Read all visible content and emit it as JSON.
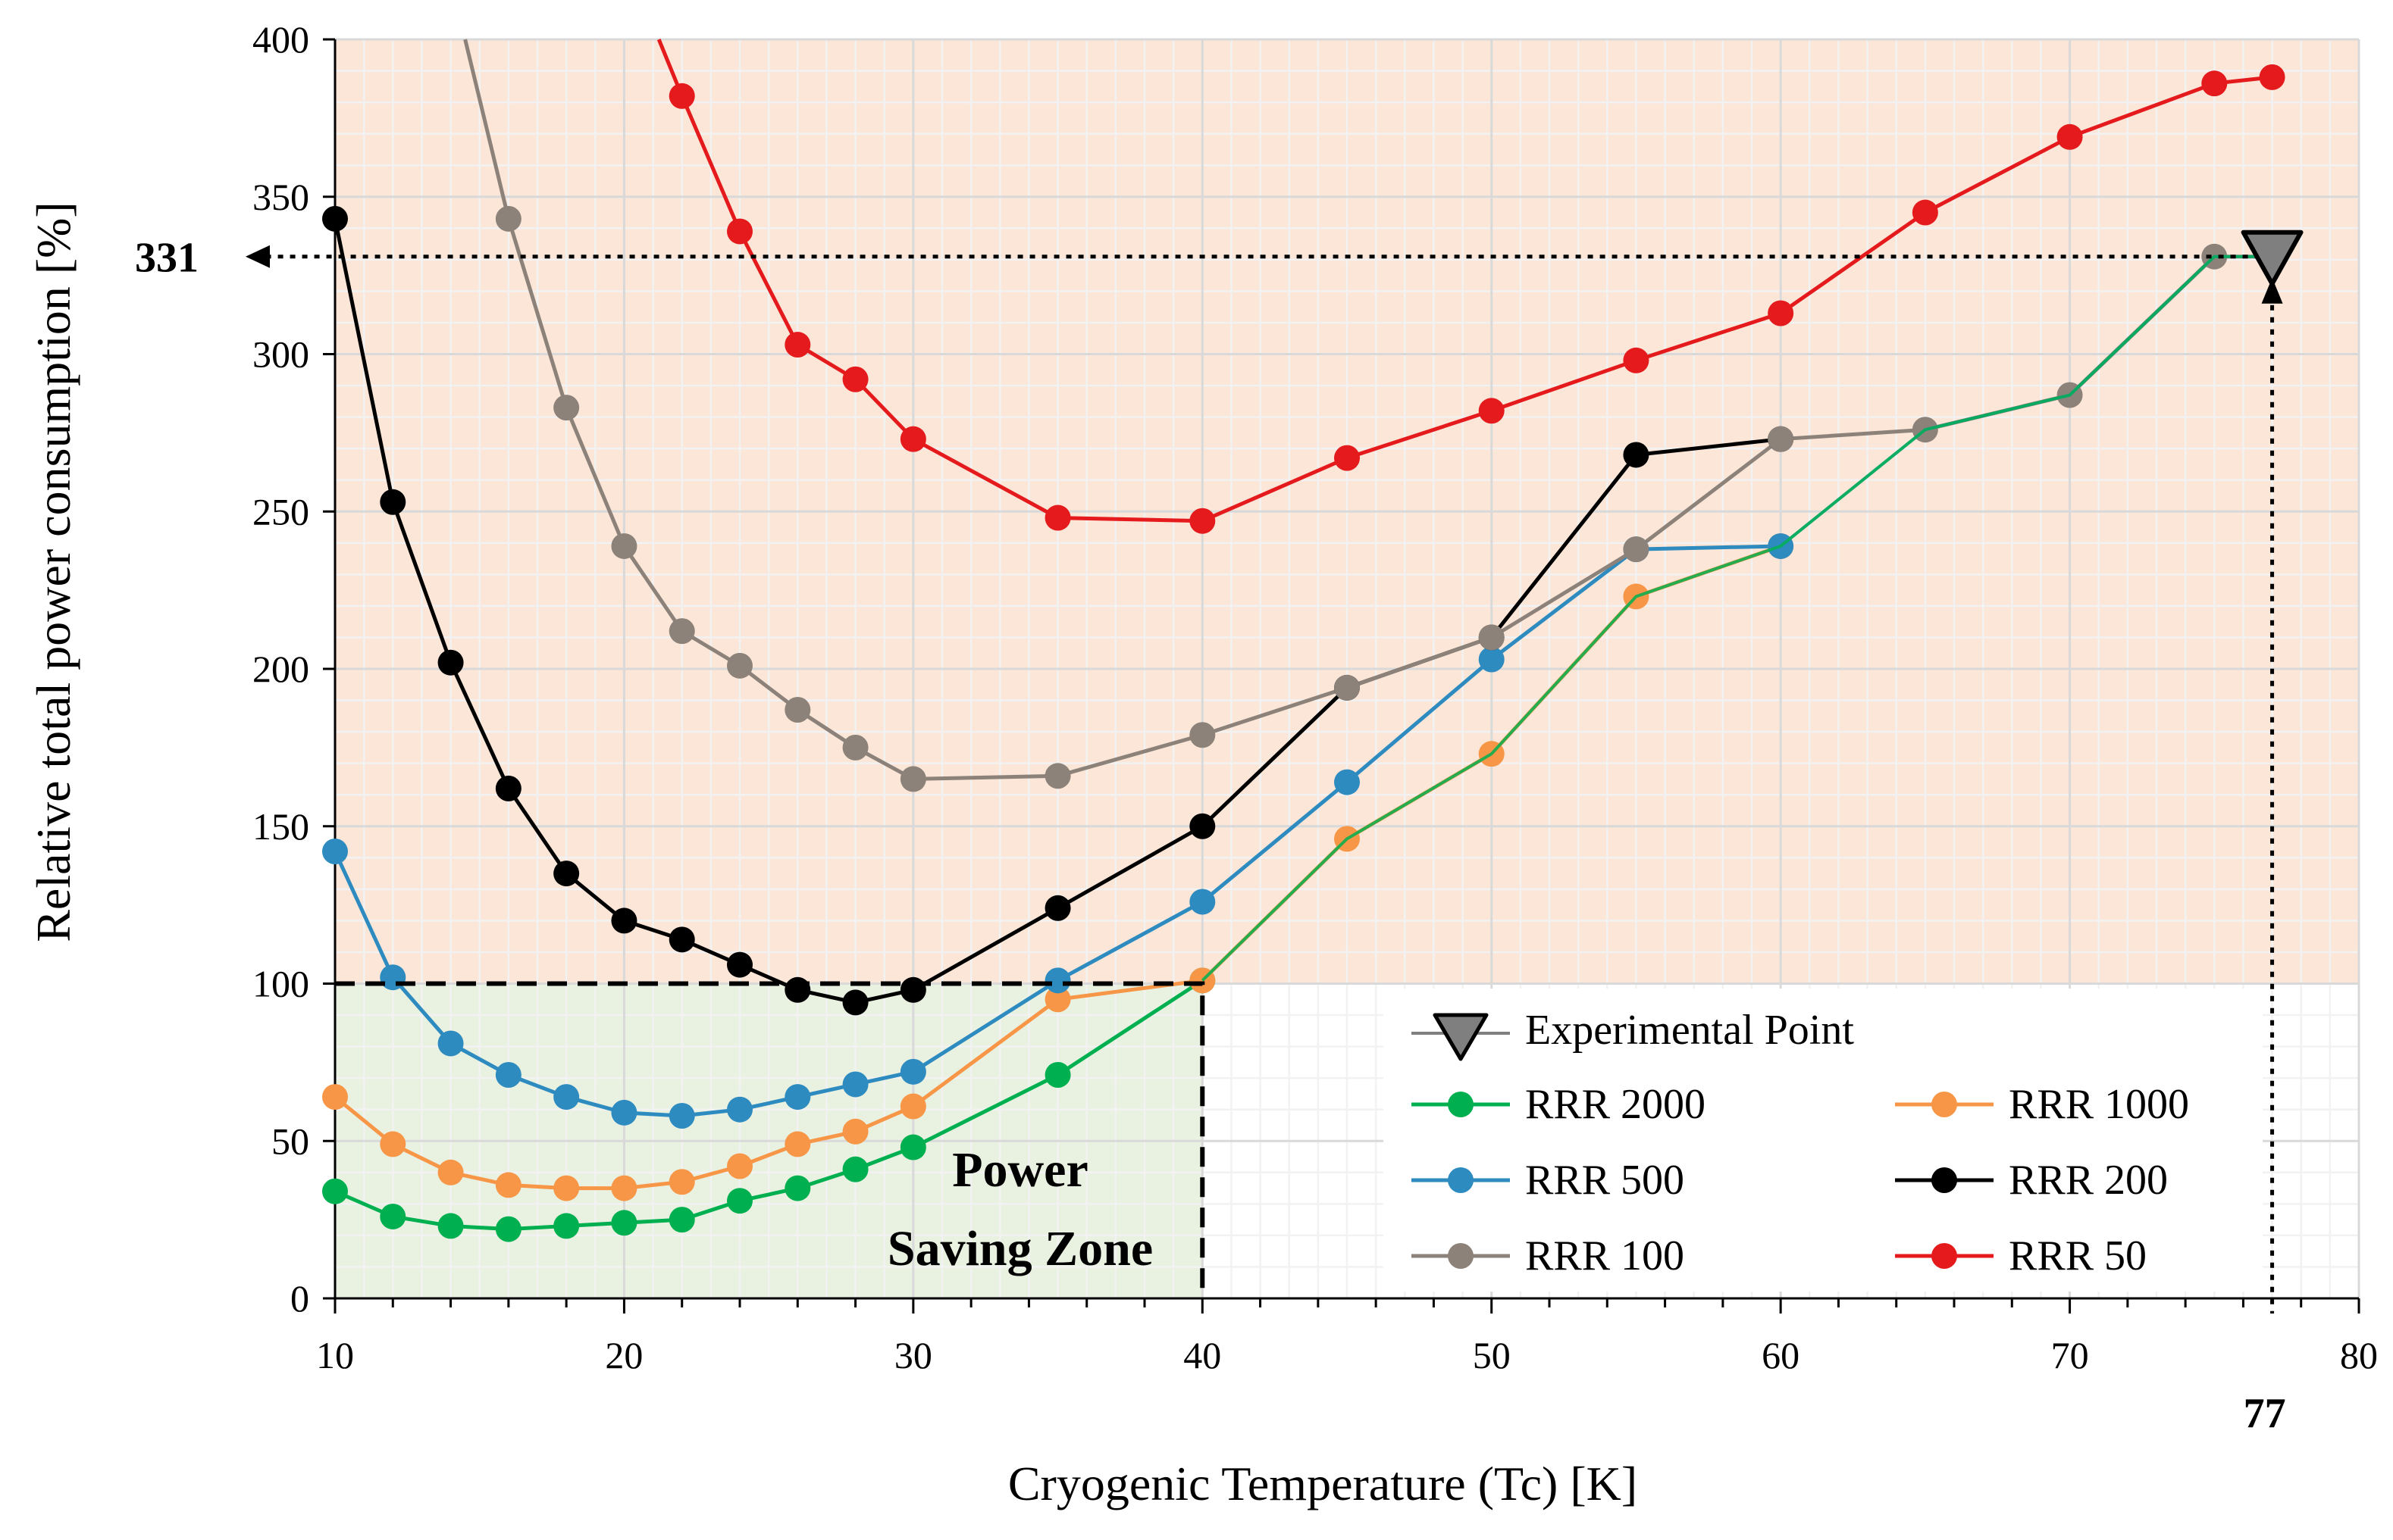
{
  "chart_data": {
    "type": "line",
    "title": "",
    "xlabel": "Cryogenic Temperature (Tc) [K]",
    "ylabel": "Relative total power consumption [%]",
    "xlim": [
      10,
      80
    ],
    "ylim": [
      0,
      400
    ],
    "xticks": [
      10,
      20,
      30,
      40,
      50,
      60,
      70,
      80
    ],
    "yticks": [
      0,
      50,
      100,
      150,
      200,
      250,
      300,
      350,
      400
    ],
    "grid": true,
    "colors": {
      "power_zone_bg": "#e9f1e1",
      "high_zone_bg": "#fbe6d8",
      "grid_major": "#d9d9d9",
      "grid_minor": "#f2f2f2",
      "experimental": "#7f7f7f"
    },
    "series": [
      {
        "name": "RRR 2000",
        "color": "#00b050",
        "x": [
          10,
          12,
          14,
          16,
          18,
          20,
          22,
          24,
          26,
          28,
          30,
          35,
          40
        ],
        "y": [
          34,
          26,
          23,
          22,
          23,
          24,
          25,
          31,
          35,
          41,
          48,
          71,
          101
        ]
      },
      {
        "name": "RRR 1000",
        "color": "#f79646",
        "x": [
          10,
          12,
          14,
          16,
          18,
          20,
          22,
          24,
          26,
          28,
          30,
          35,
          40,
          45,
          50,
          55,
          60
        ],
        "y": [
          64,
          49,
          40,
          36,
          35,
          35,
          37,
          42,
          49,
          53,
          61,
          95,
          101,
          146,
          173,
          223,
          239
        ]
      },
      {
        "name": "RRR 500",
        "color": "#2e8bc0",
        "x": [
          10,
          12,
          14,
          16,
          18,
          20,
          22,
          24,
          26,
          28,
          30,
          35,
          40,
          45,
          50,
          55,
          60
        ],
        "y": [
          142,
          102,
          81,
          71,
          64,
          59,
          58,
          60,
          64,
          68,
          72,
          101,
          126,
          164,
          203,
          238,
          239
        ]
      },
      {
        "name": "RRR 200",
        "color": "#000000",
        "x": [
          10,
          12,
          14,
          16,
          18,
          20,
          22,
          24,
          26,
          28,
          30,
          35,
          40,
          45,
          50,
          55,
          60
        ],
        "y": [
          343,
          253,
          202,
          162,
          135,
          120,
          114,
          106,
          98,
          94,
          98,
          124,
          150,
          194,
          210,
          268,
          273
        ]
      },
      {
        "name": "RRR 100",
        "color": "#8c8279",
        "x": [
          14.5,
          16,
          18,
          20,
          22,
          24,
          26,
          28,
          30,
          35,
          40,
          45,
          50,
          55,
          60,
          65,
          70,
          75,
          77
        ],
        "y": [
          400,
          343,
          283,
          239,
          212,
          201,
          187,
          175,
          165,
          166,
          179,
          194,
          210,
          238,
          273,
          276,
          287,
          331,
          331
        ]
      },
      {
        "name": "RRR 50",
        "color": "#e41a1c",
        "x": [
          21.2,
          22,
          24,
          26,
          28,
          30,
          35,
          40,
          45,
          50,
          55,
          60,
          65,
          70,
          75,
          77
        ],
        "y": [
          400,
          382,
          339,
          303,
          292,
          273,
          248,
          247,
          267,
          282,
          298,
          313,
          345,
          369,
          386,
          388
        ]
      }
    ],
    "overlap_lines": [
      {
        "over": "RRR 500",
        "x": [
          60,
          65,
          70,
          75,
          77
        ],
        "y": [
          239,
          276,
          287,
          331,
          331
        ]
      },
      {
        "over": "RRR 2000",
        "x": [
          40,
          45,
          50,
          55,
          60,
          65,
          70,
          75,
          77
        ],
        "y": [
          101,
          146,
          173,
          223,
          239,
          276,
          287,
          331,
          331
        ]
      }
    ],
    "experimental_point": {
      "name": "Experimental Point",
      "x": 77,
      "y": 331
    },
    "annotations": {
      "zone_line1": "Power",
      "zone_line2": "Saving Zone",
      "y_marker": "331",
      "x_marker": "77"
    },
    "legend_position": "bottom-right"
  }
}
